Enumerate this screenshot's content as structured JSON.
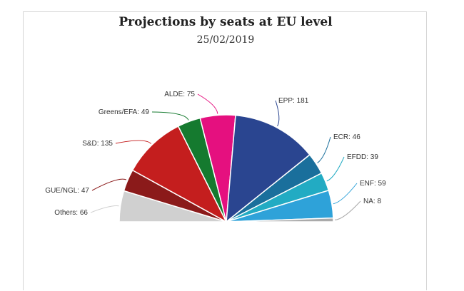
{
  "chart_data": {
    "type": "pie",
    "variant": "semicircle-parliament",
    "title": "Projections by seats at EU level",
    "subtitle": "25/02/2019",
    "slices": [
      {
        "name": "Others",
        "value": 66,
        "color": "#d0d0d0",
        "label": "Others: 66"
      },
      {
        "name": "GUE/NGL",
        "value": 47,
        "color": "#8b1a1a",
        "label": "GUE/NGL: 47"
      },
      {
        "name": "S&D",
        "value": 135,
        "color": "#c41e1e",
        "label": "S&D: 135"
      },
      {
        "name": "Greens/EFA",
        "value": 49,
        "color": "#157a2f",
        "label": "Greens/EFA: 49"
      },
      {
        "name": "ALDE",
        "value": 75,
        "color": "#e5107f",
        "label": "ALDE: 75"
      },
      {
        "name": "EPP",
        "value": 181,
        "color": "#2a4590",
        "label": "EPP: 181"
      },
      {
        "name": "ECR",
        "value": 46,
        "color": "#1a6f9c",
        "label": "ECR: 46"
      },
      {
        "name": "EFDD",
        "value": 39,
        "color": "#22abc3",
        "label": "EFDD: 39"
      },
      {
        "name": "ENF",
        "value": 59,
        "color": "#2ea2d9",
        "label": "ENF: 59"
      },
      {
        "name": "NA",
        "value": 8,
        "color": "#aaaaaa",
        "label": "NA: 8"
      }
    ]
  }
}
